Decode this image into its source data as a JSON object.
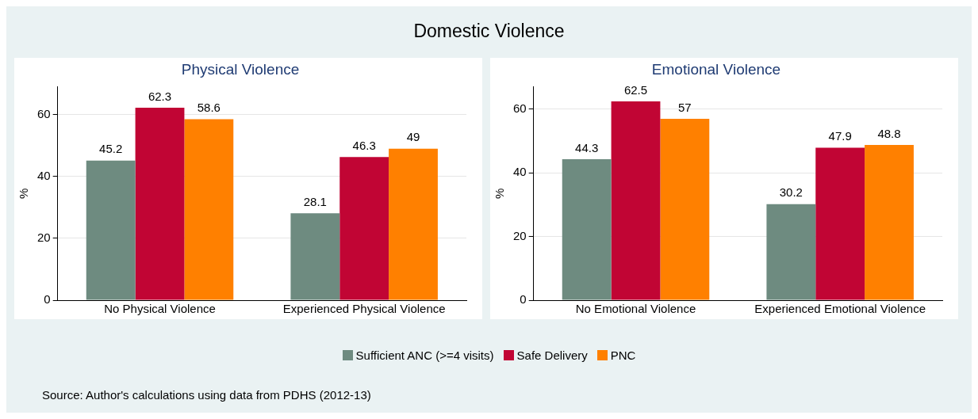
{
  "chart_data": [
    {
      "type": "other",
      "title": "Domestic Violence",
      "annotations": [
        "Source: Author's calculations using data from PDHS (2012-13)"
      ]
    },
    {
      "type": "bar",
      "title": "Physical Violence",
      "ylabel": "%",
      "categories": [
        "No Physical Violence",
        "Experienced Physical Violence"
      ],
      "series": [
        {
          "name": "Sufficient ANC (>=4 visits)",
          "color": "#6e8b80",
          "values": [
            45.2,
            28.1
          ]
        },
        {
          "name": "Safe Delivery",
          "color": "#c10534",
          "values": [
            62.3,
            46.3
          ]
        },
        {
          "name": "PNC",
          "color": "#ff8000",
          "values": [
            58.6,
            49
          ]
        }
      ],
      "ylim": [
        0,
        69
      ],
      "yticks": [
        0,
        20,
        40,
        60
      ],
      "grid": "y",
      "data_labels": true,
      "legend": "bottom"
    },
    {
      "type": "bar",
      "title": "Emotional Violence",
      "ylabel": "%",
      "categories": [
        "No Emotional Violence",
        "Experienced Emotional Violence"
      ],
      "series": [
        {
          "name": "Sufficient ANC (>=4 visits)",
          "color": "#6e8b80",
          "values": [
            44.3,
            30.2
          ]
        },
        {
          "name": "Safe Delivery",
          "color": "#c10534",
          "values": [
            62.5,
            47.9
          ]
        },
        {
          "name": "PNC",
          "color": "#ff8000",
          "values": [
            57,
            48.8
          ]
        }
      ],
      "ylim": [
        0,
        67
      ],
      "yticks": [
        0,
        20,
        40,
        60
      ],
      "grid": "y",
      "data_labels": true,
      "legend": "bottom"
    }
  ]
}
